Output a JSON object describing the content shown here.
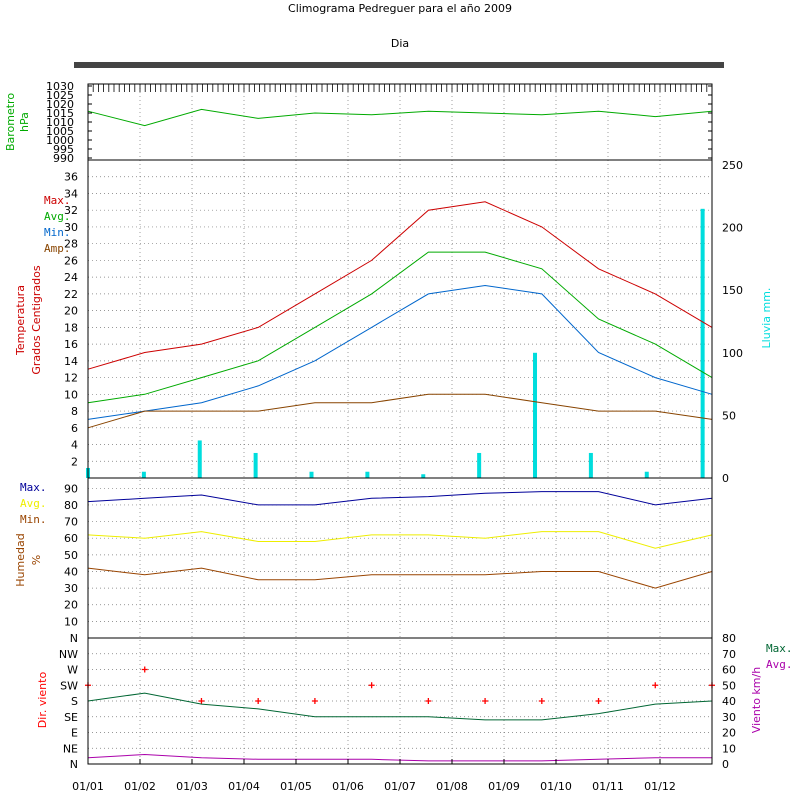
{
  "title": "Climograma Pedreguer para el año 2009",
  "subtitle": "Dia",
  "x_ticks": [
    "01/01",
    "01/02",
    "01/03",
    "01/04",
    "01/05",
    "01/06",
    "01/07",
    "01/08",
    "01/09",
    "01/10",
    "01/11",
    "01/12"
  ],
  "colors": {
    "max": "#cc0000",
    "avg": "#00aa00",
    "min": "#0066cc",
    "amp": "#884400",
    "rain": "#00dddd",
    "baro": "#00aa00",
    "hum_max": "#000099",
    "hum_avg": "#eeee00",
    "hum_min": "#994400",
    "dir": "#ff0000",
    "wind_max": "#006633",
    "wind_avg": "#aa00aa"
  },
  "panels": {
    "barometer": {
      "ylabel_lines": [
        "Barometro",
        "hPa"
      ],
      "y_ticks": [
        "990",
        "995",
        "1000",
        "1005",
        "1010",
        "1015",
        "1020",
        "1025",
        "1030"
      ]
    },
    "temperature": {
      "ylabel_lines": [
        "Temperatura",
        "Grados Centigrados"
      ],
      "legend": [
        "Max.",
        "Avg.",
        "Min.",
        "Amp."
      ],
      "y_ticks": [
        "2",
        "4",
        "6",
        "8",
        "10",
        "12",
        "14",
        "16",
        "18",
        "20",
        "22",
        "24",
        "26",
        "28",
        "30",
        "32",
        "34",
        "36"
      ],
      "y2_label": "Lluvia mm.",
      "y2_ticks": [
        "0",
        "50",
        "100",
        "150",
        "200",
        "250"
      ]
    },
    "humidity": {
      "ylabel_lines": [
        "Humedad",
        "%"
      ],
      "legend": [
        "Max.",
        "Avg.",
        "Min."
      ],
      "y_ticks": [
        "10",
        "20",
        "30",
        "40",
        "50",
        "60",
        "70",
        "80",
        "90"
      ]
    },
    "wind": {
      "ylabel": "Dir. viento",
      "y_ticks": [
        "N",
        "NE",
        "E",
        "SE",
        "S",
        "SW",
        "W",
        "NW"
      ],
      "y_top_tick": "N",
      "y2_label": "Viento km/h",
      "y2_ticks": [
        "0",
        "10",
        "20",
        "30",
        "40",
        "50",
        "60",
        "70",
        "80"
      ],
      "legend": [
        "Max.",
        "Avg."
      ]
    }
  },
  "chart_data": [
    {
      "type": "line",
      "panel": "barometer",
      "x": [
        "01/01",
        "01/02",
        "01/03",
        "01/04",
        "01/05",
        "01/06",
        "01/07",
        "01/08",
        "01/09",
        "01/10",
        "01/11",
        "01/12"
      ],
      "ylim": [
        990,
        1030
      ],
      "series": [
        {
          "name": "",
          "values": [
            1016,
            1008,
            1017,
            1012,
            1015,
            1014,
            1016,
            1015,
            1014,
            1016,
            1013,
            1016
          ]
        }
      ]
    },
    {
      "type": "line",
      "panel": "temperature",
      "x": [
        "01/01",
        "01/02",
        "01/03",
        "01/04",
        "01/05",
        "01/06",
        "01/07",
        "01/08",
        "01/09",
        "01/10",
        "01/11",
        "01/12"
      ],
      "ylim": [
        0,
        38
      ],
      "series": [
        {
          "name": "Max.",
          "values": [
            13,
            15,
            16,
            18,
            22,
            26,
            32,
            33,
            30,
            25,
            22,
            18
          ]
        },
        {
          "name": "Avg.",
          "values": [
            9,
            10,
            12,
            14,
            18,
            22,
            27,
            27,
            25,
            19,
            16,
            12
          ]
        },
        {
          "name": "Min.",
          "values": [
            7,
            8,
            9,
            11,
            14,
            18,
            22,
            23,
            22,
            15,
            12,
            10
          ]
        },
        {
          "name": "Amp.",
          "values": [
            6,
            8,
            8,
            8,
            9,
            9,
            10,
            10,
            9,
            8,
            8,
            7
          ]
        }
      ]
    },
    {
      "type": "bar",
      "panel": "temperature-rain",
      "x": [
        "01/01",
        "01/02",
        "01/03",
        "01/04",
        "01/05",
        "01/06",
        "01/07",
        "01/08",
        "01/09",
        "01/10",
        "01/11",
        "01/12"
      ],
      "ylim": [
        0,
        250
      ],
      "series": [
        {
          "name": "",
          "values": [
            8,
            5,
            30,
            20,
            5,
            5,
            3,
            20,
            100,
            20,
            5,
            215
          ]
        }
      ]
    },
    {
      "type": "line",
      "panel": "humidity",
      "x": [
        "01/01",
        "01/02",
        "01/03",
        "01/04",
        "01/05",
        "01/06",
        "01/07",
        "01/08",
        "01/09",
        "01/10",
        "01/11",
        "01/12"
      ],
      "ylim": [
        0,
        95
      ],
      "series": [
        {
          "name": "Max.",
          "values": [
            82,
            84,
            86,
            80,
            80,
            84,
            85,
            87,
            88,
            88,
            80,
            84
          ]
        },
        {
          "name": "Avg.",
          "values": [
            62,
            60,
            64,
            58,
            58,
            62,
            62,
            60,
            64,
            64,
            54,
            62
          ]
        },
        {
          "name": "Min.",
          "values": [
            42,
            38,
            42,
            35,
            35,
            38,
            38,
            38,
            40,
            40,
            30,
            40
          ]
        }
      ]
    },
    {
      "type": "scatter",
      "panel": "wind-direction",
      "x": [
        "01/01",
        "01/02",
        "01/03",
        "01/04",
        "01/05",
        "01/06",
        "01/07",
        "01/08",
        "01/09",
        "01/10",
        "01/11",
        "01/12"
      ],
      "ylim": [
        0,
        8
      ],
      "series": [
        {
          "name": "",
          "values": [
            5,
            6,
            4,
            4,
            4,
            5,
            4,
            4,
            4,
            4,
            5,
            5
          ]
        }
      ]
    },
    {
      "type": "line",
      "panel": "wind-speed",
      "x": [
        "01/01",
        "01/02",
        "01/03",
        "01/04",
        "01/05",
        "01/06",
        "01/07",
        "01/08",
        "01/09",
        "01/10",
        "01/11",
        "01/12"
      ],
      "ylim": [
        0,
        80
      ],
      "series": [
        {
          "name": "Max.",
          "values": [
            40,
            45,
            38,
            35,
            30,
            30,
            30,
            28,
            28,
            32,
            38,
            40
          ]
        },
        {
          "name": "Avg.",
          "values": [
            4,
            6,
            4,
            3,
            3,
            3,
            2,
            2,
            2,
            3,
            4,
            4
          ]
        }
      ]
    }
  ]
}
